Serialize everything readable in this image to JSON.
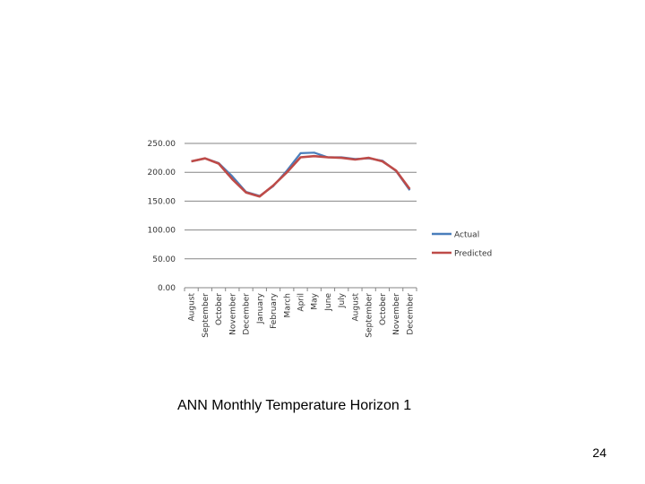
{
  "caption": "ANN Monthly Temperature Horizon 1",
  "page_number": "24",
  "chart_data": {
    "type": "line",
    "categories": [
      "August",
      "September",
      "October",
      "November",
      "December",
      "January",
      "February",
      "March",
      "April",
      "May",
      "June",
      "July",
      "August",
      "September",
      "October",
      "November",
      "December"
    ],
    "series": [
      {
        "name": "Actual",
        "color": "#4a7ebb",
        "values": [
          219,
          224,
          216,
          193,
          166,
          159,
          176,
          203,
          233,
          234,
          226,
          226,
          223,
          224,
          220,
          202,
          169
        ]
      },
      {
        "name": "Predicted",
        "color": "#be4b48",
        "values": [
          219,
          224,
          215,
          188,
          165,
          158,
          177,
          200,
          226,
          228,
          226,
          225,
          222,
          225,
          219,
          203,
          171
        ]
      }
    ],
    "y_ticks": [
      "0.00",
      "50.00",
      "100.00",
      "150.00",
      "200.00",
      "250.00"
    ],
    "ylim": [
      0,
      250
    ],
    "grid": true,
    "legend": "right"
  }
}
